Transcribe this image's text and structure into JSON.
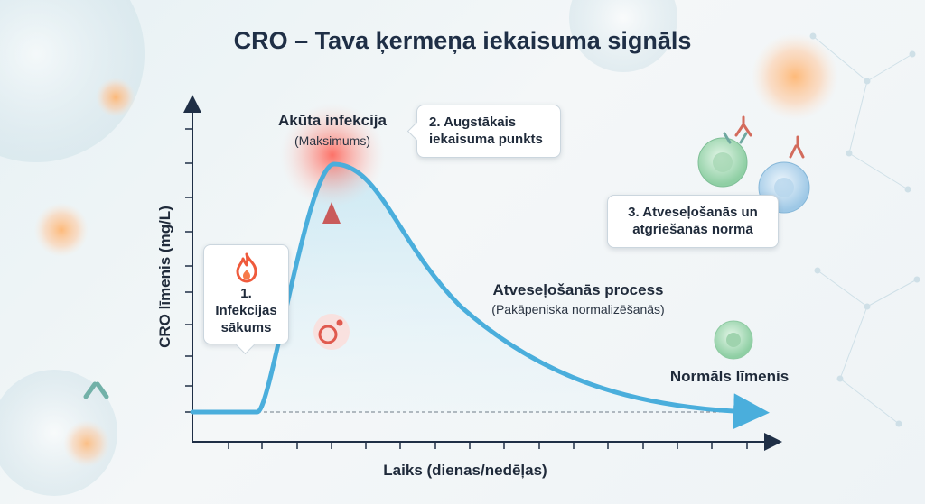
{
  "title": "CRO – Tava ķermeņa iekaisuma signāls",
  "y_axis_label": "CRO līmenis (mg/L)",
  "x_axis_label": "Laiks (dienas/nedēļas)",
  "callout_1": {
    "line1": "1.",
    "line2": "Infekcijas",
    "line3": "sākums",
    "icon": "flame-icon"
  },
  "callout_2": {
    "line1": "2. Augstākais",
    "line2": "iekaisuma punkts"
  },
  "callout_3": {
    "line1": "3. Atveseļošanās un",
    "line2": "atgriešanās normā"
  },
  "peak": {
    "label": "Akūta infekcija",
    "sub": "(Maksimums)"
  },
  "recovery": {
    "label": "Atveseļošanās process",
    "sub": "(Pakāpeniska normalizēšanās)"
  },
  "normal": {
    "label": "Normāls līmenis"
  },
  "colors": {
    "curve": "#4aaedc",
    "peak_glow": "#ff5a4e",
    "arrow": "#c95b5b",
    "axis": "#1f2f46",
    "title": "#1f2f46"
  }
}
